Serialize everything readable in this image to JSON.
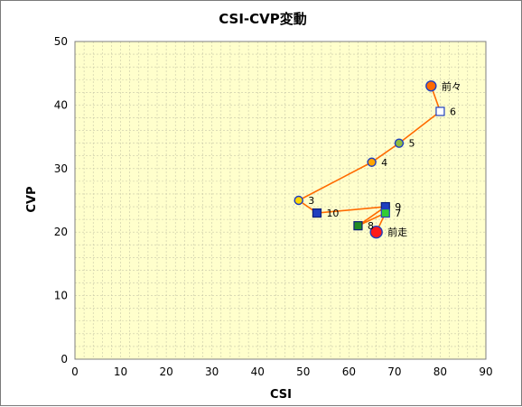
{
  "chart_data": {
    "type": "scatter",
    "title": "CSI-CVP変動",
    "xlabel": "CSI",
    "ylabel": "CVP",
    "xlim": [
      0,
      90
    ],
    "ylim": [
      0,
      50
    ],
    "xticks": [
      0,
      10,
      20,
      30,
      40,
      50,
      60,
      70,
      80,
      90
    ],
    "yticks": [
      0,
      10,
      20,
      30,
      40,
      50
    ],
    "grid": true,
    "plot_background": "#ffffcc",
    "grid_color": "#c8c8a8",
    "line_color": "#ff6a00",
    "path_order": [
      "前々",
      "6",
      "5",
      "4",
      "3",
      "10",
      "9",
      "8",
      "7",
      "前走"
    ],
    "points": [
      {
        "label": "前々",
        "x": 78,
        "y": 43,
        "marker": "circle",
        "fill": "#ff6a00",
        "stroke": "#1f3fbf",
        "size": 11
      },
      {
        "label": "6",
        "x": 80,
        "y": 39,
        "marker": "square",
        "fill": "#ffffff",
        "stroke": "#1f3fbf",
        "size": 9
      },
      {
        "label": "5",
        "x": 71,
        "y": 34,
        "marker": "circle",
        "fill": "#8fbc3f",
        "stroke": "#1f3fbf",
        "size": 9
      },
      {
        "label": "4",
        "x": 65,
        "y": 31,
        "marker": "circle",
        "fill": "#ffa500",
        "stroke": "#1f3fbf",
        "size": 9
      },
      {
        "label": "3",
        "x": 49,
        "y": 25,
        "marker": "circle",
        "fill": "#ffd700",
        "stroke": "#1f3fbf",
        "size": 9
      },
      {
        "label": "10",
        "x": 53,
        "y": 23,
        "marker": "square",
        "fill": "#1f3fbf",
        "stroke": "#0a1e7a",
        "size": 9
      },
      {
        "label": "9",
        "x": 68,
        "y": 24,
        "marker": "square",
        "fill": "#1f3fbf",
        "stroke": "#0a1e7a",
        "size": 9
      },
      {
        "label": "8",
        "x": 62,
        "y": 21,
        "marker": "square",
        "fill": "#228b22",
        "stroke": "#0a1e7a",
        "size": 9
      },
      {
        "label": "7",
        "x": 68,
        "y": 23,
        "marker": "square",
        "fill": "#33cc33",
        "stroke": "#1f3fbf",
        "size": 9
      },
      {
        "label": "前走",
        "x": 66,
        "y": 20,
        "marker": "circle",
        "fill": "#ff1a1a",
        "stroke": "#1f3fbf",
        "size": 13
      }
    ]
  }
}
